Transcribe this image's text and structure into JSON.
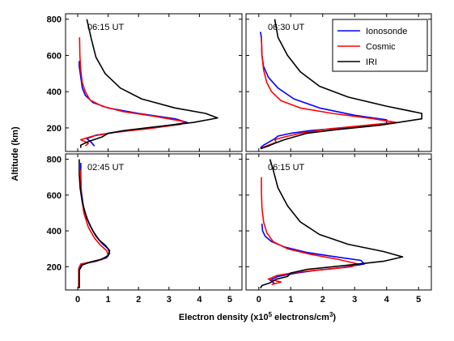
{
  "chart_data": {
    "type": "line",
    "xlabel": "Electron density (x10",
    "xlabel_sup1": "5",
    "xlabel_mid": " electrons/cm",
    "xlabel_sup2": "3",
    "xlabel_end": ")",
    "ylabel": "Altitude (km)",
    "xlim": [
      -0.4,
      5.4
    ],
    "ylim": [
      70,
      830
    ],
    "x_ticks": [
      0,
      1,
      2,
      3,
      4,
      5
    ],
    "y_ticks": [
      200,
      400,
      600,
      800
    ],
    "legend": {
      "placement": "top-right of top-right panel",
      "entries": [
        {
          "name": "Ionosonde",
          "color": "#0000ff"
        },
        {
          "name": "Cosmic",
          "color": "#ff0000"
        },
        {
          "name": "IRI",
          "color": "#000000"
        }
      ]
    },
    "panels": [
      {
        "label": "06:15 UT",
        "series": [
          {
            "name": "Ionosonde",
            "color": "#0000ff",
            "points": [
              [
                0.55,
                100
              ],
              [
                0.45,
                120
              ],
              [
                0.3,
                140
              ],
              [
                0.6,
                160
              ],
              [
                1.4,
                180
              ],
              [
                2.5,
                200
              ],
              [
                3.6,
                230
              ],
              [
                3.2,
                250
              ],
              [
                2.0,
                280
              ],
              [
                1.0,
                310
              ],
              [
                0.5,
                340
              ],
              [
                0.25,
                380
              ],
              [
                0.15,
                420
              ],
              [
                0.1,
                480
              ],
              [
                0.05,
                540
              ],
              [
                0.05,
                570
              ]
            ]
          },
          {
            "name": "Cosmic",
            "color": "#ff0000",
            "points": [
              [
                0.25,
                100
              ],
              [
                0.35,
                115
              ],
              [
                0.1,
                135
              ],
              [
                0.5,
                155
              ],
              [
                1.2,
                175
              ],
              [
                2.3,
                195
              ],
              [
                3.4,
                220
              ],
              [
                3.5,
                235
              ],
              [
                2.5,
                265
              ],
              [
                1.5,
                290
              ],
              [
                0.8,
                320
              ],
              [
                0.4,
                355
              ],
              [
                0.25,
                400
              ],
              [
                0.15,
                450
              ],
              [
                0.1,
                520
              ],
              [
                0.07,
                600
              ],
              [
                0.06,
                700
              ]
            ]
          },
          {
            "name": "IRI",
            "color": "#000000",
            "points": [
              [
                0.1,
                90
              ],
              [
                0.1,
                105
              ],
              [
                0.35,
                125
              ],
              [
                0.8,
                150
              ],
              [
                1.0,
                170
              ],
              [
                1.5,
                185
              ],
              [
                2.5,
                205
              ],
              [
                3.8,
                230
              ],
              [
                4.6,
                255
              ],
              [
                4.2,
                280
              ],
              [
                3.2,
                310
              ],
              [
                2.1,
                360
              ],
              [
                1.4,
                420
              ],
              [
                0.9,
                500
              ],
              [
                0.6,
                590
              ],
              [
                0.45,
                690
              ],
              [
                0.3,
                800
              ]
            ]
          }
        ]
      },
      {
        "label": "06:30 UT",
        "series": [
          {
            "name": "Ionosonde",
            "color": "#0000ff",
            "points": [
              [
                0.05,
                90
              ],
              [
                0.15,
                105
              ],
              [
                0.3,
                120
              ],
              [
                0.5,
                140
              ],
              [
                0.6,
                155
              ],
              [
                1.0,
                170
              ],
              [
                1.6,
                185
              ],
              [
                2.6,
                200
              ],
              [
                4.0,
                225
              ],
              [
                4.0,
                245
              ],
              [
                3.0,
                270
              ],
              [
                1.9,
                310
              ],
              [
                1.1,
                360
              ],
              [
                0.6,
                420
              ],
              [
                0.3,
                480
              ],
              [
                0.15,
                540
              ],
              [
                0.1,
                600
              ],
              [
                0.08,
                700
              ],
              [
                0.05,
                730
              ]
            ]
          },
          {
            "name": "Cosmic",
            "color": "#ff0000",
            "points": [
              [
                0.1,
                90
              ],
              [
                0.3,
                105
              ],
              [
                0.55,
                120
              ],
              [
                0.5,
                135
              ],
              [
                0.8,
                150
              ],
              [
                1.3,
                170
              ],
              [
                2.2,
                195
              ],
              [
                3.4,
                215
              ],
              [
                4.3,
                230
              ],
              [
                3.6,
                250
              ],
              [
                2.3,
                280
              ],
              [
                1.3,
                310
              ],
              [
                0.7,
                350
              ],
              [
                0.4,
                400
              ],
              [
                0.25,
                450
              ],
              [
                0.15,
                520
              ],
              [
                0.1,
                600
              ],
              [
                0.08,
                700
              ]
            ]
          },
          {
            "name": "IRI",
            "color": "#000000",
            "points": [
              [
                0.05,
                85
              ],
              [
                0.3,
                100
              ],
              [
                0.5,
                115
              ],
              [
                0.8,
                135
              ],
              [
                1.1,
                150
              ],
              [
                1.5,
                170
              ],
              [
                2.4,
                190
              ],
              [
                3.8,
                215
              ],
              [
                5.1,
                250
              ],
              [
                5.1,
                280
              ],
              [
                4.0,
                320
              ],
              [
                2.8,
                370
              ],
              [
                1.9,
                430
              ],
              [
                1.3,
                510
              ],
              [
                0.9,
                600
              ],
              [
                0.6,
                700
              ],
              [
                0.5,
                800
              ]
            ]
          }
        ]
      },
      {
        "label": "02:45 UT",
        "series": [
          {
            "name": "Ionosonde",
            "color": "#0000ff",
            "points": [
              [
                0.05,
                80
              ],
              [
                0.05,
                180
              ],
              [
                0.1,
                210
              ],
              [
                0.3,
                220
              ],
              [
                0.6,
                230
              ],
              [
                0.95,
                250
              ],
              [
                1.05,
                275
              ],
              [
                1.0,
                300
              ],
              [
                0.8,
                330
              ],
              [
                0.6,
                370
              ],
              [
                0.4,
                430
              ],
              [
                0.2,
                520
              ],
              [
                0.12,
                620
              ],
              [
                0.1,
                700
              ],
              [
                0.1,
                780
              ]
            ]
          },
          {
            "name": "Cosmic",
            "color": "#ff0000",
            "points": [
              [
                0.03,
                80
              ],
              [
                0.03,
                190
              ],
              [
                0.1,
                215
              ],
              [
                0.4,
                225
              ],
              [
                0.8,
                240
              ],
              [
                1.0,
                265
              ],
              [
                0.95,
                290
              ],
              [
                0.75,
                320
              ],
              [
                0.55,
                360
              ],
              [
                0.35,
                420
              ],
              [
                0.2,
                500
              ],
              [
                0.12,
                600
              ],
              [
                0.1,
                700
              ],
              [
                0.1,
                740
              ]
            ]
          },
          {
            "name": "IRI",
            "color": "#000000",
            "points": [
              [
                0.05,
                80
              ],
              [
                0.05,
                180
              ],
              [
                0.15,
                210
              ],
              [
                0.4,
                225
              ],
              [
                0.75,
                240
              ],
              [
                1.0,
                260
              ],
              [
                1.05,
                290
              ],
              [
                0.9,
                320
              ],
              [
                0.7,
                350
              ],
              [
                0.5,
                400
              ],
              [
                0.3,
                470
              ],
              [
                0.15,
                560
              ],
              [
                0.08,
                640
              ],
              [
                0.05,
                720
              ],
              [
                0.05,
                800
              ]
            ]
          }
        ]
      },
      {
        "label": "06:15 UT",
        "series": [
          {
            "name": "Ionosonde",
            "color": "#0000ff",
            "points": [
              [
                0.5,
                105
              ],
              [
                0.35,
                125
              ],
              [
                0.6,
                145
              ],
              [
                1.2,
                165
              ],
              [
                1.8,
                180
              ],
              [
                2.6,
                195
              ],
              [
                3.3,
                215
              ],
              [
                3.2,
                235
              ],
              [
                2.4,
                255
              ],
              [
                1.5,
                280
              ],
              [
                0.8,
                310
              ],
              [
                0.4,
                340
              ],
              [
                0.2,
                370
              ],
              [
                0.12,
                400
              ],
              [
                0.1,
                440
              ]
            ]
          },
          {
            "name": "Cosmic",
            "color": "#ff0000",
            "points": [
              [
                0.4,
                100
              ],
              [
                0.7,
                115
              ],
              [
                0.3,
                130
              ],
              [
                0.55,
                150
              ],
              [
                1.2,
                170
              ],
              [
                2.1,
                185
              ],
              [
                2.9,
                200
              ],
              [
                3.1,
                215
              ],
              [
                2.5,
                240
              ],
              [
                1.6,
                270
              ],
              [
                0.9,
                300
              ],
              [
                0.45,
                340
              ],
              [
                0.25,
                390
              ],
              [
                0.15,
                450
              ],
              [
                0.1,
                530
              ],
              [
                0.08,
                620
              ],
              [
                0.08,
                700
              ]
            ]
          },
          {
            "name": "IRI",
            "color": "#000000",
            "points": [
              [
                0.05,
                80
              ],
              [
                0.1,
                95
              ],
              [
                0.35,
                110
              ],
              [
                0.55,
                130
              ],
              [
                0.9,
                145
              ],
              [
                1.0,
                165
              ],
              [
                1.5,
                185
              ],
              [
                2.6,
                205
              ],
              [
                3.9,
                230
              ],
              [
                4.5,
                255
              ],
              [
                3.9,
                285
              ],
              [
                2.8,
                325
              ],
              [
                1.9,
                380
              ],
              [
                1.3,
                450
              ],
              [
                0.9,
                540
              ],
              [
                0.6,
                640
              ],
              [
                0.45,
                740
              ],
              [
                0.35,
                800
              ]
            ]
          }
        ]
      }
    ]
  }
}
